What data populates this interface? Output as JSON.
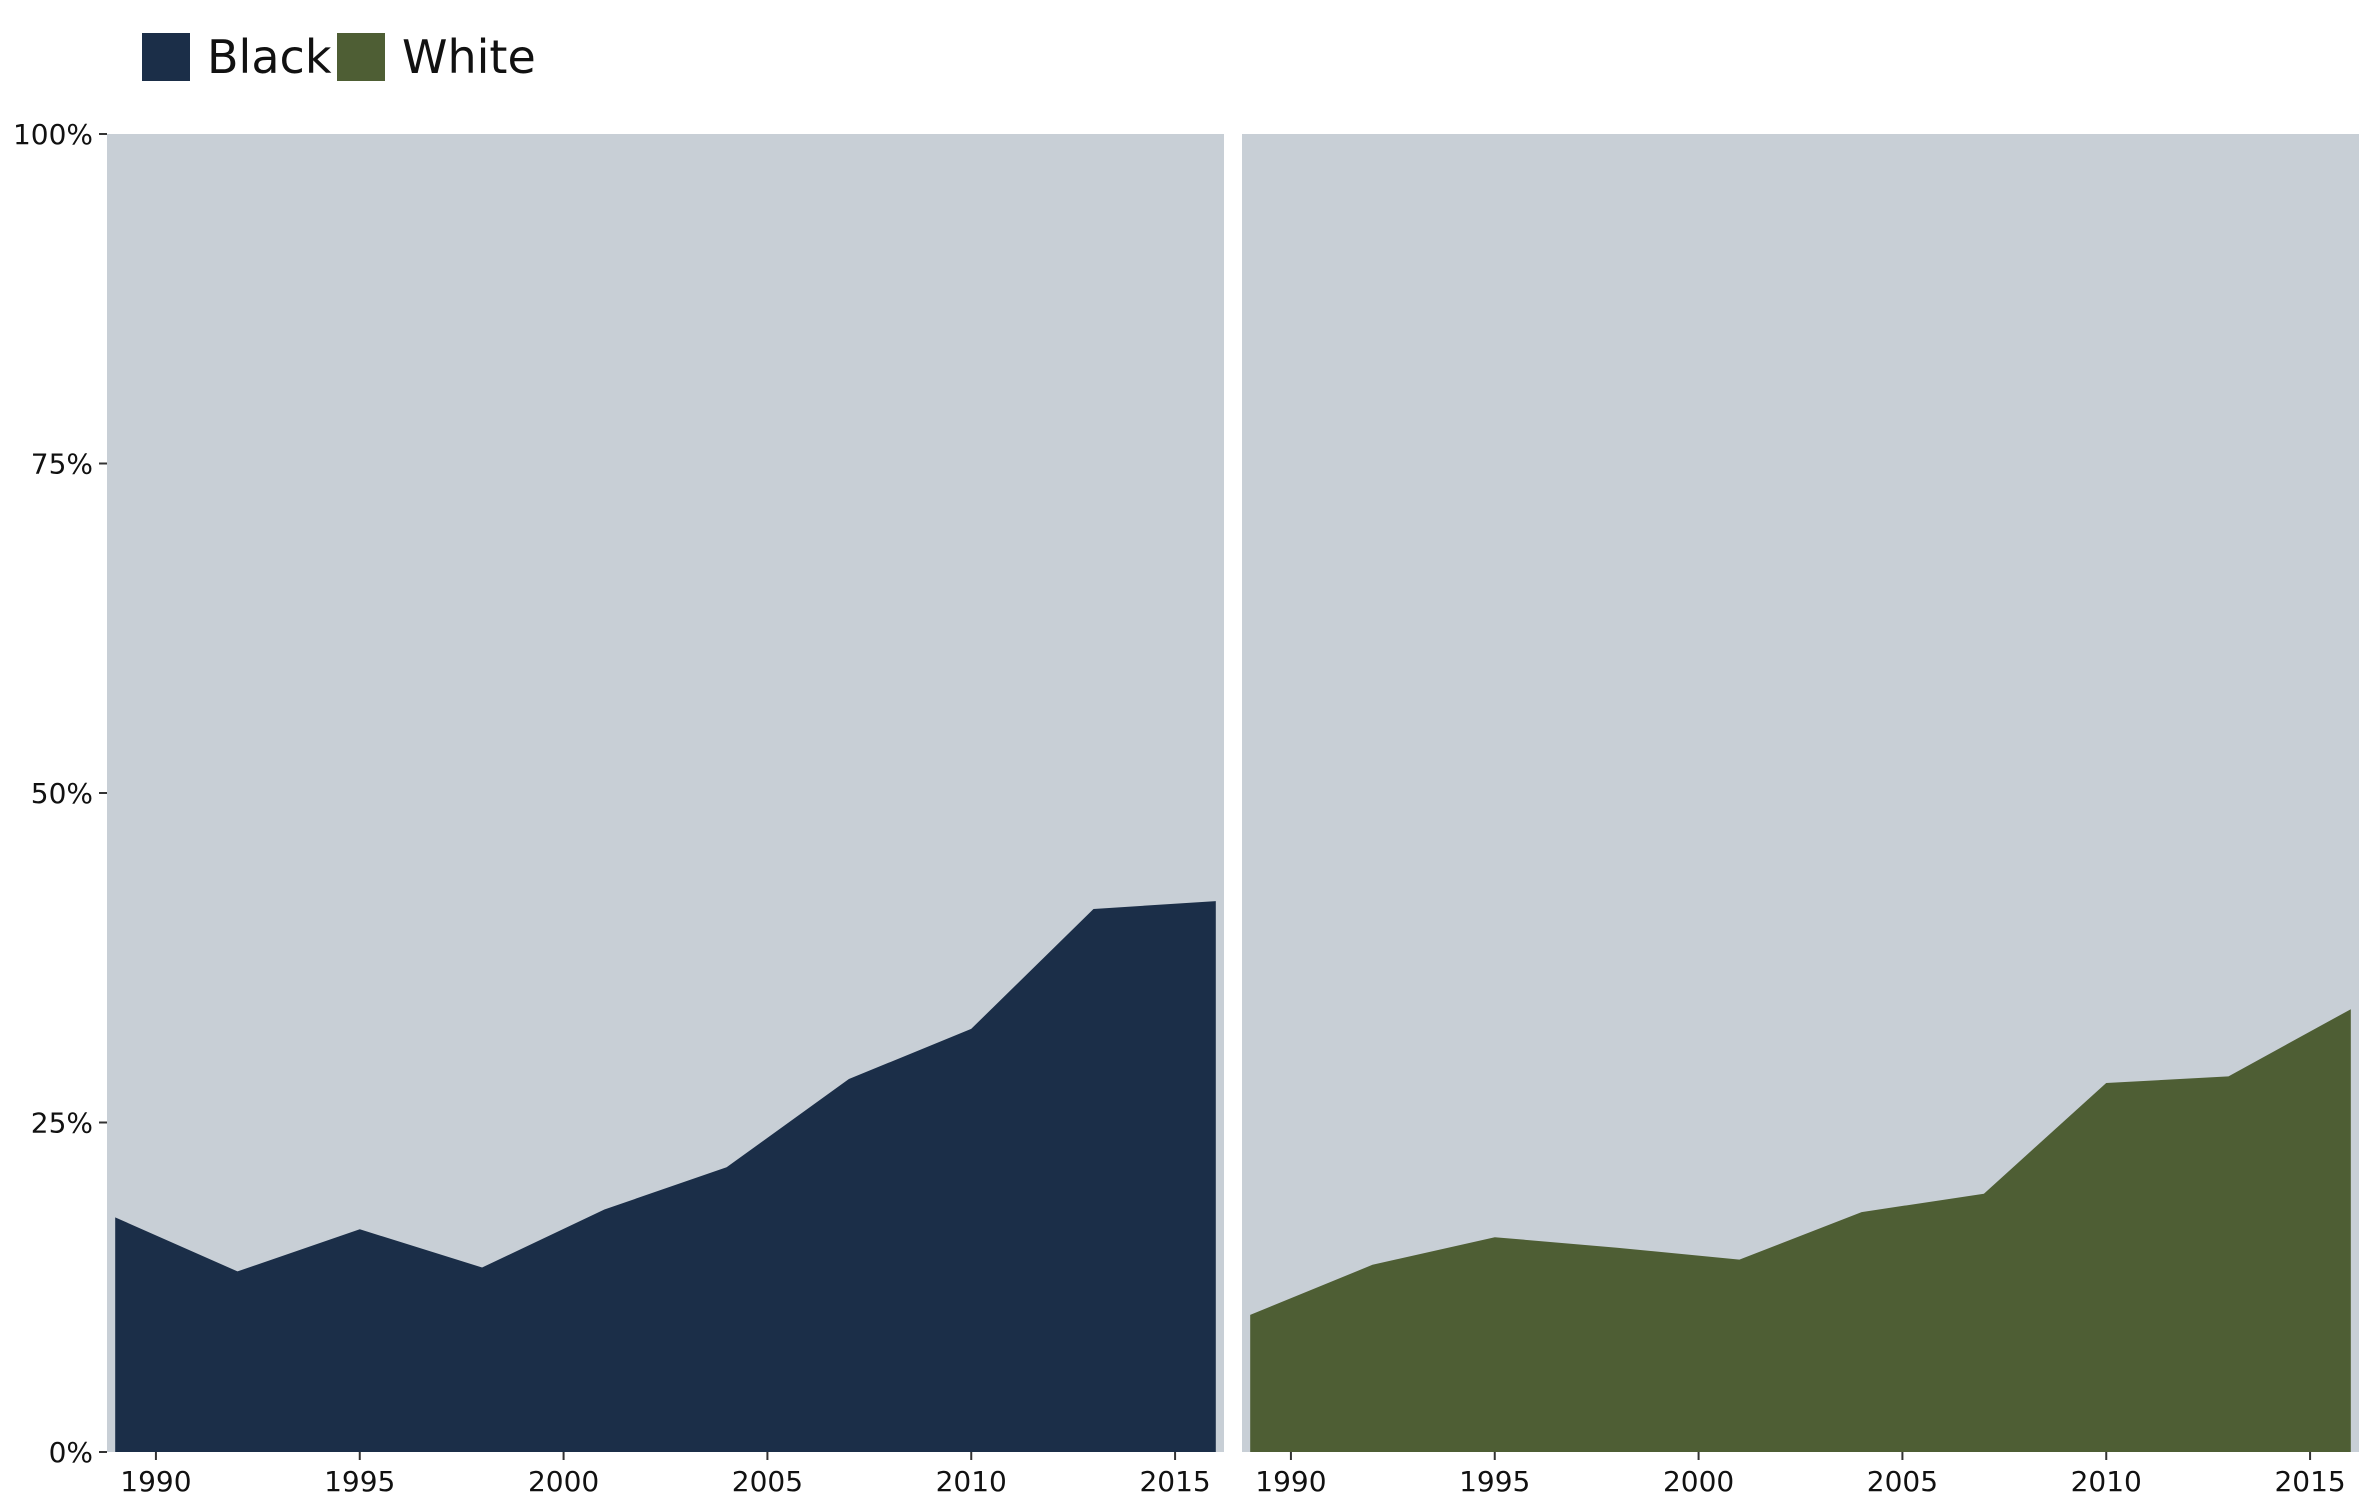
{
  "chart_data": {
    "type": "area",
    "x_ticks": [
      1990,
      1995,
      2000,
      2005,
      2010,
      2015
    ],
    "y_ticks": [
      0,
      25,
      50,
      75,
      100
    ],
    "y_tick_labels": [
      "0%",
      "25%",
      "50%",
      "75%",
      "100%"
    ],
    "ylim": [
      0,
      100
    ],
    "xlim": [
      1988.8,
      2016.2
    ],
    "legend": {
      "placement": "top-left",
      "entries": [
        {
          "name": "Black",
          "color": "#1b2e48"
        },
        {
          "name": "White",
          "color": "#4e5e34"
        }
      ]
    },
    "panel_background": "#c8cfd6",
    "series": [
      {
        "name": "Black",
        "color": "#1b2e48",
        "x": [
          1989,
          1992,
          1995,
          1998,
          2001,
          2004,
          2007,
          2010,
          2013,
          2016
        ],
        "values": [
          17.8,
          13.7,
          16.9,
          14.0,
          18.4,
          21.6,
          28.3,
          32.1,
          41.2,
          41.8
        ]
      },
      {
        "name": "White",
        "color": "#4e5e34",
        "x": [
          1989,
          1992,
          1995,
          1998,
          2001,
          2004,
          2007,
          2010,
          2013,
          2016
        ],
        "values": [
          10.4,
          14.2,
          16.3,
          15.5,
          14.6,
          18.2,
          19.6,
          28.0,
          28.5,
          33.6
        ]
      }
    ]
  }
}
